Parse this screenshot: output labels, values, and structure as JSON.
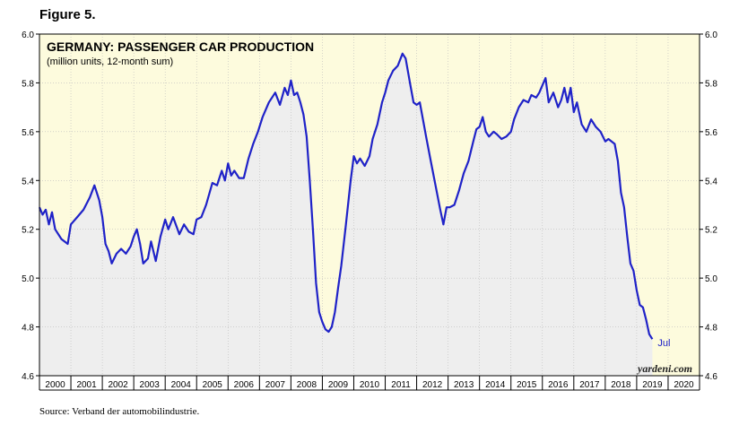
{
  "figure_label": "Figure 5.",
  "source": "Source: Verband der automobilindustrie.",
  "watermark": "yardeni.com",
  "chart_data": {
    "type": "line",
    "title": "GERMANY: PASSENGER CAR PRODUCTION",
    "subtitle": "(million units, 12-month sum)",
    "xlabel": "",
    "ylabel": "",
    "xlim": [
      2000,
      2021
    ],
    "ylim": [
      4.6,
      6.0
    ],
    "y_ticks": [
      "4.6",
      "4.8",
      "5.0",
      "5.2",
      "5.4",
      "5.6",
      "5.8",
      "6.0"
    ],
    "x_ticks": [
      "2000",
      "2001",
      "2002",
      "2003",
      "2004",
      "2005",
      "2006",
      "2007",
      "2008",
      "2009",
      "2010",
      "2011",
      "2012",
      "2013",
      "2014",
      "2015",
      "2016",
      "2017",
      "2018",
      "2019",
      "2020"
    ],
    "end_label": "Jul",
    "grid": true,
    "line_color": "#1f22c8",
    "plot_background": "#fdfbdd",
    "fill_color": "#eeeeee",
    "series": [
      {
        "x": [
          2000.0,
          2000.1,
          2000.2,
          2000.3,
          2000.4,
          2000.5,
          2000.7,
          2000.9,
          2001.0,
          2001.2,
          2001.4,
          2001.6,
          2001.75,
          2001.9,
          2002.0,
          2002.1,
          2002.2,
          2002.3,
          2002.45,
          2002.6,
          2002.75,
          2002.9,
          2003.0,
          2003.1,
          2003.2,
          2003.3,
          2003.45,
          2003.55,
          2003.7,
          2003.85,
          2004.0,
          2004.1,
          2004.25,
          2004.45,
          2004.6,
          2004.75,
          2004.9,
          2005.0,
          2005.15,
          2005.3,
          2005.5,
          2005.65,
          2005.8,
          2005.9,
          2006.0,
          2006.1,
          2006.2,
          2006.35,
          2006.5,
          2006.65,
          2006.8,
          2006.95,
          2007.1,
          2007.3,
          2007.5,
          2007.65,
          2007.8,
          2007.9,
          2008.0,
          2008.1,
          2008.2,
          2008.3,
          2008.4,
          2008.5,
          2008.6,
          2008.7,
          2008.8,
          2008.9,
          2009.0,
          2009.1,
          2009.2,
          2009.3,
          2009.4,
          2009.5,
          2009.6,
          2009.75,
          2009.9,
          2010.0,
          2010.1,
          2010.2,
          2010.35,
          2010.5,
          2010.6,
          2010.75,
          2010.9,
          2011.0,
          2011.1,
          2011.25,
          2011.4,
          2011.55,
          2011.65,
          2011.8,
          2011.9,
          2012.0,
          2012.1,
          2012.2,
          2012.3,
          2012.45,
          2012.6,
          2012.75,
          2012.85,
          2012.95,
          2013.05,
          2013.2,
          2013.35,
          2013.5,
          2013.65,
          2013.8,
          2013.9,
          2014.0,
          2014.1,
          2014.2,
          2014.3,
          2014.45,
          2014.55,
          2014.7,
          2014.85,
          2015.0,
          2015.1,
          2015.25,
          2015.4,
          2015.55,
          2015.65,
          2015.8,
          2015.9,
          2016.0,
          2016.1,
          2016.2,
          2016.35,
          2016.5,
          2016.6,
          2016.7,
          2016.8,
          2016.9,
          2017.0,
          2017.1,
          2017.25,
          2017.4,
          2017.55,
          2017.7,
          2017.85,
          2018.0,
          2018.1,
          2018.2,
          2018.3,
          2018.4,
          2018.5,
          2018.6,
          2018.7,
          2018.8,
          2018.9,
          2019.0,
          2019.1,
          2019.2,
          2019.3,
          2019.4,
          2019.5
        ],
        "y": [
          5.29,
          5.26,
          5.28,
          5.22,
          5.27,
          5.2,
          5.16,
          5.14,
          5.22,
          5.25,
          5.28,
          5.33,
          5.38,
          5.32,
          5.25,
          5.14,
          5.11,
          5.06,
          5.1,
          5.12,
          5.1,
          5.13,
          5.17,
          5.2,
          5.14,
          5.06,
          5.08,
          5.15,
          5.07,
          5.17,
          5.24,
          5.2,
          5.25,
          5.18,
          5.22,
          5.19,
          5.18,
          5.24,
          5.25,
          5.3,
          5.39,
          5.38,
          5.44,
          5.4,
          5.47,
          5.42,
          5.44,
          5.41,
          5.41,
          5.49,
          5.55,
          5.6,
          5.66,
          5.72,
          5.76,
          5.71,
          5.78,
          5.75,
          5.81,
          5.75,
          5.76,
          5.72,
          5.67,
          5.58,
          5.4,
          5.2,
          4.98,
          4.86,
          4.82,
          4.79,
          4.78,
          4.8,
          4.86,
          4.96,
          5.05,
          5.22,
          5.4,
          5.5,
          5.47,
          5.49,
          5.46,
          5.5,
          5.57,
          5.63,
          5.72,
          5.76,
          5.81,
          5.85,
          5.87,
          5.92,
          5.9,
          5.79,
          5.72,
          5.71,
          5.72,
          5.65,
          5.58,
          5.48,
          5.38,
          5.28,
          5.22,
          5.29,
          5.29,
          5.3,
          5.36,
          5.43,
          5.48,
          5.56,
          5.61,
          5.62,
          5.66,
          5.6,
          5.58,
          5.6,
          5.59,
          5.57,
          5.58,
          5.6,
          5.65,
          5.7,
          5.73,
          5.72,
          5.75,
          5.74,
          5.76,
          5.79,
          5.82,
          5.72,
          5.76,
          5.7,
          5.73,
          5.78,
          5.72,
          5.78,
          5.68,
          5.72,
          5.63,
          5.6,
          5.65,
          5.62,
          5.6,
          5.56,
          5.57,
          5.56,
          5.55,
          5.48,
          5.35,
          5.29,
          5.17,
          5.06,
          5.03,
          4.95,
          4.89,
          4.88,
          4.83,
          4.77,
          4.75
        ]
      }
    ]
  }
}
